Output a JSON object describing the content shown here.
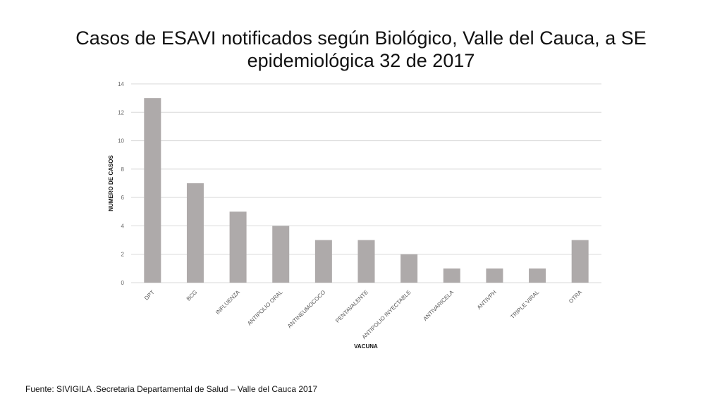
{
  "title": {
    "line1": "Casos de ESAVI notificados según Biológico, Valle del Cauca, a SE",
    "line2": "epidemiológica 32 de 2017"
  },
  "source": "Fuente: SIVIGILA .Secretaria Departamental de Salud – Valle del Cauca 2017",
  "chart_data": {
    "type": "bar",
    "xlabel": "VACUNA",
    "ylabel": "NUMERO DE CASOS",
    "ylim": [
      0,
      14
    ],
    "yticks": [
      0,
      2,
      4,
      6,
      8,
      10,
      12,
      14
    ],
    "grid": true,
    "categories": [
      "DPT",
      "BCG",
      "INFLUENZA",
      "ANTIPOLIO ORAL",
      "ANTINEUMOCOCO",
      "PENTAVALENTE",
      "ANTIPOLIO INYECTABLE",
      "ANTIVARICELA",
      "ANTIVPH",
      "TRIPLE VIRAL",
      "OTRA"
    ],
    "values": [
      13,
      7,
      5,
      4,
      3,
      3,
      2,
      1,
      1,
      1,
      3
    ],
    "bar_color": "#aeaaaa",
    "grid_color": "#d9d9d9"
  }
}
